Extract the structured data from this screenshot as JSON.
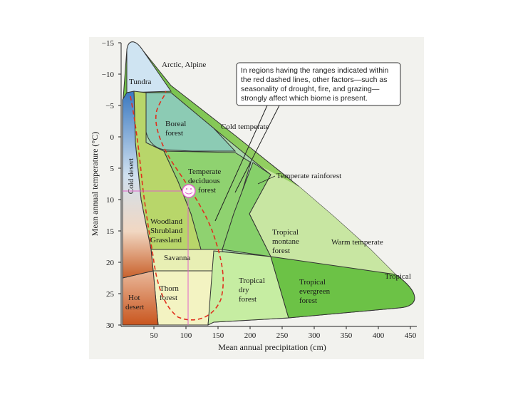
{
  "axes": {
    "x_title": "Mean annual precipitation (cm)",
    "y_title": "Mean annual temperature (°C)",
    "x_ticks": [
      "50",
      "100",
      "150",
      "200",
      "250",
      "300",
      "350",
      "400",
      "450"
    ],
    "y_ticks": [
      "−15",
      "−10",
      "−5",
      "0",
      "5",
      "10",
      "15",
      "20",
      "25",
      "30"
    ]
  },
  "biomes": {
    "tundra": "Tundra",
    "boreal_1": "Boreal",
    "boreal_2": "forest",
    "cold_desert": "Cold desert",
    "temperate_deciduous_1": "Temperate",
    "temperate_deciduous_2": "deciduous",
    "temperate_deciduous_3": "forest",
    "woodland_1": "Woodland",
    "woodland_2": "Shrubland",
    "woodland_3": "Grassland",
    "savanna": "Savanna",
    "thorn_1": "Thorn",
    "thorn_2": "forest",
    "hot_desert_1": "Hot",
    "hot_desert_2": "desert",
    "trop_dry_1": "Tropical",
    "trop_dry_2": "dry",
    "trop_dry_3": "forest",
    "trop_ever_1": "Tropical",
    "trop_ever_2": "evergreen",
    "trop_ever_3": "forest",
    "trop_montane_1": "Tropical",
    "trop_montane_2": "montane",
    "trop_montane_3": "forest"
  },
  "zones": {
    "arctic": "Arctic, Alpine",
    "cold_temperate": "Cold temperate",
    "temperate_rainforest": "Temperate rainforest",
    "warm_temperate": "Warm temperate",
    "tropical": "Tropical"
  },
  "callout": {
    "line1": "In regions having the ranges indicated within",
    "line2": "the red dashed lines, other factors—such as",
    "line3": "seasonality of drought, fire, and grazing—",
    "line4": "strongly affect which biome is present."
  },
  "colors": {
    "tundra": "#cfe4f2",
    "boreal": "#8ccbb4",
    "temperate_band": "#a9d8ac",
    "temperate_deciduous": "#8fd270",
    "woodland": "#b8d66a",
    "savanna": "#e8efb4",
    "thorn": "#f3f3c2",
    "tropical_dry": "#c6eda2",
    "tropical_evergreen": "#6cc246",
    "tropical_montane": "#86d06a",
    "hot_desert": "#c9612b",
    "dashed": "#e0301e",
    "marker": "#e060c8"
  }
}
